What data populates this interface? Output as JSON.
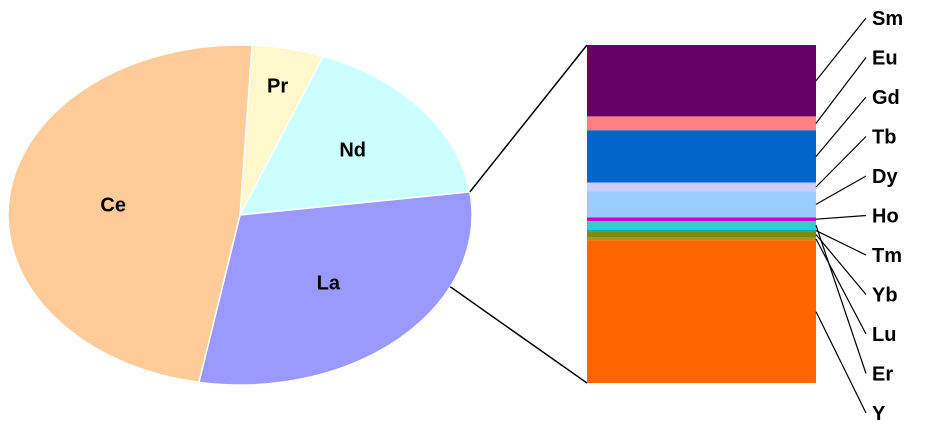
{
  "chart_data": [
    {
      "type": "pie",
      "title": "",
      "slices": [
        {
          "label": "Pr",
          "value": 5,
          "color": "#FFF8CC"
        },
        {
          "label": "Nd",
          "value": 17,
          "color": "#CCFFFF"
        },
        {
          "label": "La",
          "value": 30,
          "color": "#9999FF"
        },
        {
          "label": "Ce",
          "value": 48,
          "color": "#FFCC99"
        }
      ]
    },
    {
      "type": "bar",
      "stacked": true,
      "title": "",
      "segments": [
        {
          "label": "Sm",
          "value": 20.5,
          "color": "#660066"
        },
        {
          "label": "Eu",
          "value": 4.0,
          "color": "#FF8080"
        },
        {
          "label": "Gd",
          "value": 15.0,
          "color": "#0066CC"
        },
        {
          "label": "Tb",
          "value": 2.5,
          "color": "#CCCCFF"
        },
        {
          "label": "Dy",
          "value": 7.5,
          "color": "#99CCFF"
        },
        {
          "label": "Ho",
          "value": 1.0,
          "color": "#CC00CC"
        },
        {
          "label": "Er",
          "value": 2.5,
          "color": "#33CCCC"
        },
        {
          "label": "Tm",
          "value": 0.5,
          "color": "#00AAAA"
        },
        {
          "label": "Yb",
          "value": 1.8,
          "color": "#888800"
        },
        {
          "label": "Lu",
          "value": 0.7,
          "color": "#999933"
        },
        {
          "label": "Y",
          "value": 41.0,
          "color": "#FF6600"
        }
      ],
      "label_order": [
        "Sm",
        "Eu",
        "Gd",
        "Tb",
        "Dy",
        "Ho",
        "Tm",
        "Yb",
        "Lu",
        "Er",
        "Y"
      ]
    }
  ]
}
